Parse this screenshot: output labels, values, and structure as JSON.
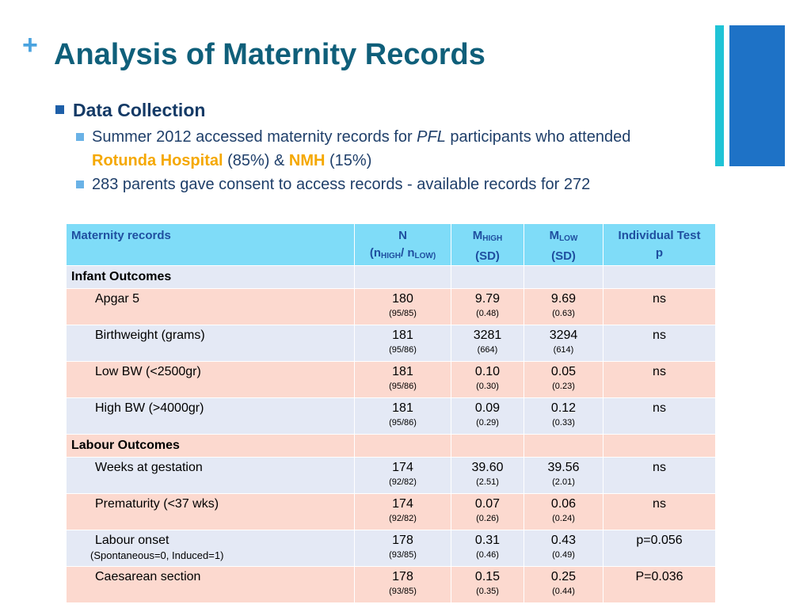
{
  "slide": {
    "plus": "+",
    "title": "Analysis of Maternity Records",
    "bullet1": "Data Collection",
    "sub1_pre": "Summer 2012 accessed maternity records for ",
    "sub1_italic": "PFL",
    "sub1_mid": " participants who attended",
    "sub1_hl1": "Rotunda Hospital",
    "sub1_pct1": " (85%) & ",
    "sub1_hl2": "NMH",
    "sub1_pct2": " (15%)",
    "sub2": "283 parents gave consent to access records - available records for 272"
  },
  "table": {
    "headers": {
      "col1": "Maternity records",
      "n_top": "N",
      "n_open": "(n",
      "n_high": "HIGH",
      "n_sep": "/ n",
      "n_low": "LOW)",
      "mh_m": "M",
      "mh_sub": "HIGH",
      "mh_sd": "(SD)",
      "ml_m": "M",
      "ml_sub": "LOW",
      "ml_sd": "(SD)",
      "test1": "Individual Test",
      "test2": "p"
    },
    "sections": {
      "infant": "Infant Outcomes",
      "labour": "Labour Outcomes"
    },
    "rows": [
      {
        "label": "Apgar 5",
        "note": "",
        "n": "180",
        "n_split": "(95/85)",
        "mh": "9.79",
        "mh_sd": "(0.48)",
        "ml": "9.69",
        "ml_sd": "(0.63)",
        "p": "ns"
      },
      {
        "label": "Birthweight (grams)",
        "note": "",
        "n": "181",
        "n_split": "(95/86)",
        "mh": "3281",
        "mh_sd": "(664)",
        "ml": "3294",
        "ml_sd": "(614)",
        "p": "ns"
      },
      {
        "label": "Low BW (<2500gr)",
        "note": "",
        "n": "181",
        "n_split": "(95/86)",
        "mh": "0.10",
        "mh_sd": "(0.30)",
        "ml": "0.05",
        "ml_sd": "(0.23)",
        "p": "ns"
      },
      {
        "label": "High BW (>4000gr)",
        "note": "",
        "n": "181",
        "n_split": "(95/86)",
        "mh": "0.09",
        "mh_sd": "(0.29)",
        "ml": "0.12",
        "ml_sd": "(0.33)",
        "p": "ns"
      },
      {
        "label": "Weeks at gestation",
        "note": "",
        "n": "174",
        "n_split": "(92/82)",
        "mh": "39.60",
        "mh_sd": "(2.51)",
        "ml": "39.56",
        "ml_sd": "(2.01)",
        "p": "ns"
      },
      {
        "label": "Prematurity (<37 wks)",
        "note": "",
        "n": "174",
        "n_split": "(92/82)",
        "mh": "0.07",
        "mh_sd": "(0.26)",
        "ml": "0.06",
        "ml_sd": "(0.24)",
        "p": "ns"
      },
      {
        "label": "Labour onset",
        "note": "(Spontaneous=0, Induced=1)",
        "n": "178",
        "n_split": "(93/85)",
        "mh": "0.31",
        "mh_sd": "(0.46)",
        "ml": "0.43",
        "ml_sd": "(0.49)",
        "p": "p=0.056"
      },
      {
        "label": "Caesarean section",
        "note": "",
        "n": "178",
        "n_split": "(93/85)",
        "mh": "0.15",
        "mh_sd": "(0.35)",
        "ml": "0.25",
        "ml_sd": "(0.44)",
        "p": "P=0.036"
      }
    ]
  }
}
